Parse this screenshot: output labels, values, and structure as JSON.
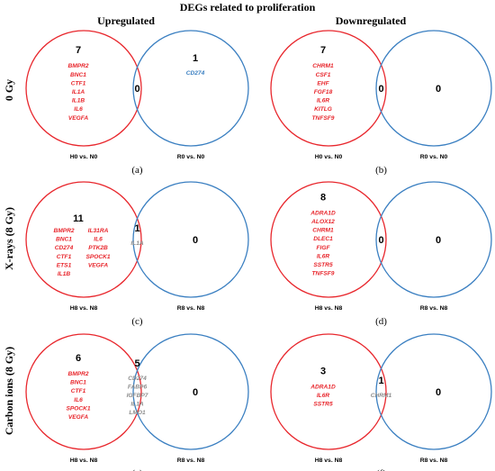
{
  "title": "DEGs related to proliferation",
  "column_headers": [
    "Upregulated",
    "Downregulated"
  ],
  "row_labels": [
    "0 Gy",
    "X-rays (8 Gy)",
    "Carbon ions (8 Gy)"
  ],
  "colors": {
    "left_circle": "#e8262c",
    "right_circle": "#3a7fc1",
    "left_genes": "#e8262c",
    "right_genes": "#3a7fc1",
    "overlap_genes": "#8c8c8c",
    "text": "#000000"
  },
  "panels": [
    {
      "letter": "(a)",
      "left": {
        "label": "H0 vs. N0",
        "count": "7",
        "genes": [
          "BMPR2",
          "BNC1",
          "CTF1",
          "IL1A",
          "IL1B",
          "IL6",
          "VEGFA"
        ]
      },
      "overlap": {
        "count": "0",
        "genes": []
      },
      "right": {
        "label": "R0 vs. N0",
        "count": "1",
        "genes": [
          "CD274"
        ]
      }
    },
    {
      "letter": "(b)",
      "left": {
        "label": "H0 vs. N0",
        "count": "7",
        "genes": [
          "CHRM1",
          "CSF1",
          "EHF",
          "FGF18",
          "IL6R",
          "KITLG",
          "TNFSF9"
        ]
      },
      "overlap": {
        "count": "0",
        "genes": []
      },
      "right": {
        "label": "R0 vs. N0",
        "count": "0",
        "genes": []
      }
    },
    {
      "letter": "(c)",
      "left": {
        "label": "H8 vs. N8",
        "count": "11",
        "genes": [
          "BMPR2",
          "BNC1",
          "CD274",
          "CTF1",
          "ETS1",
          "IL1B",
          "IL31RA",
          "IL6",
          "PTK2B",
          "SPOCK1",
          "VEGFA"
        ]
      },
      "overlap": {
        "count": "1",
        "genes": [
          "IL1A"
        ]
      },
      "right": {
        "label": "R8 vs. N8",
        "count": "0",
        "genes": []
      }
    },
    {
      "letter": "(d)",
      "left": {
        "label": "H8 vs. N8",
        "count": "8",
        "genes": [
          "ADRA1D",
          "ALOX12",
          "CHRM1",
          "DLEC1",
          "FIGF",
          "IL6R",
          "SSTR5",
          "TNFSF9"
        ]
      },
      "overlap": {
        "count": "0",
        "genes": []
      },
      "right": {
        "label": "R8 vs. N8",
        "count": "0",
        "genes": []
      }
    },
    {
      "letter": "(e)",
      "left": {
        "label": "H8 vs. N8",
        "count": "6",
        "genes": [
          "BMPR2",
          "BNC1",
          "CTF1",
          "IL6",
          "SPOCK1",
          "VEGFA"
        ]
      },
      "overlap": {
        "count": "5",
        "genes": [
          "CD274",
          "FABP6",
          "IGFBP7",
          "IL1A",
          "LMO1"
        ]
      },
      "right": {
        "label": "R8 vs. N8",
        "count": "0",
        "genes": []
      }
    },
    {
      "letter": "(f)",
      "left": {
        "label": "H8 vs. N8",
        "count": "3",
        "genes": [
          "ADRA1D",
          "IL6R",
          "SSTR5"
        ]
      },
      "overlap": {
        "count": "1",
        "genes": [
          "CHRM1"
        ]
      },
      "right": {
        "label": "R8 vs. N8",
        "count": "0",
        "genes": []
      }
    }
  ]
}
